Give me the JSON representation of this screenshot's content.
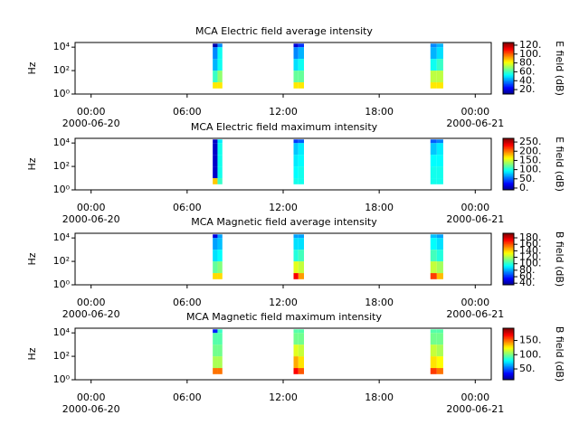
{
  "chart_data": [
    {
      "type": "heatmap",
      "title": "MCA  Electric field average intensity",
      "ylabel": "Hz",
      "colorbar_label": "E field (dB)",
      "colormap": "jet",
      "ylog": true,
      "xlim": [
        -1,
        25
      ],
      "xticks": [
        {
          "value": 0,
          "label": "00:00"
        },
        {
          "value": 6,
          "label": "06:00"
        },
        {
          "value": 12,
          "label": "12:00"
        },
        {
          "value": 18,
          "label": "18:00"
        },
        {
          "value": 24,
          "label": "00:00"
        }
      ],
      "xtick_dates": [
        {
          "value": 0,
          "label": "2000-06-20"
        },
        {
          "value": 24,
          "label": "2000-06-21"
        }
      ],
      "ylim": [
        1,
        25000
      ],
      "yticks": [
        {
          "value": 1,
          "label": "10⁰"
        },
        {
          "value": 100,
          "label": "10²"
        },
        {
          "value": 10000,
          "label": "10⁴"
        }
      ],
      "clim": [
        10,
        126
      ],
      "cticks": [
        {
          "value": 20,
          "label": "20."
        },
        {
          "value": 40,
          "label": "40."
        },
        {
          "value": 60,
          "label": "60."
        },
        {
          "value": 80,
          "label": "80."
        },
        {
          "value": 100,
          "label": "100."
        },
        {
          "value": 120,
          "label": "120."
        }
      ],
      "freq_edges": [
        3,
        10,
        100,
        1000,
        10000,
        20000
      ],
      "blocks": [
        {
          "x": [
            7.6,
            7.9,
            8.2
          ],
          "values": [
            [
              85,
              85
            ],
            [
              60,
              70
            ],
            [
              45,
              55
            ],
            [
              40,
              55
            ],
            [
              15,
              40
            ]
          ]
        },
        {
          "x": [
            12.65,
            12.95,
            13.3
          ],
          "values": [
            [
              85,
              85
            ],
            [
              65,
              65
            ],
            [
              50,
              55
            ],
            [
              40,
              45
            ],
            [
              20,
              30
            ]
          ]
        },
        {
          "x": [
            21.2,
            21.6,
            22.0
          ],
          "values": [
            [
              85,
              85
            ],
            [
              75,
              75
            ],
            [
              55,
              60
            ],
            [
              45,
              50
            ],
            [
              40,
              45
            ]
          ]
        }
      ]
    },
    {
      "type": "heatmap",
      "title": "MCA  Electric field maximum intensity",
      "ylabel": "Hz",
      "colorbar_label": "E field (dB)",
      "colormap": "jet",
      "ylog": true,
      "xlim": [
        -1,
        25
      ],
      "xticks": [
        {
          "value": 0,
          "label": "00:00"
        },
        {
          "value": 6,
          "label": "06:00"
        },
        {
          "value": 12,
          "label": "12:00"
        },
        {
          "value": 18,
          "label": "18:00"
        },
        {
          "value": 24,
          "label": "00:00"
        }
      ],
      "xtick_dates": [
        {
          "value": 0,
          "label": "2000-06-20"
        },
        {
          "value": 24,
          "label": "2000-06-21"
        }
      ],
      "ylim": [
        1,
        25000
      ],
      "yticks": [
        {
          "value": 1,
          "label": "10⁰"
        },
        {
          "value": 100,
          "label": "10²"
        },
        {
          "value": 10000,
          "label": "10⁴"
        }
      ],
      "clim": [
        -10,
        270
      ],
      "cticks": [
        {
          "value": 0,
          "label": "0."
        },
        {
          "value": 50,
          "label": "50."
        },
        {
          "value": 100,
          "label": "100."
        },
        {
          "value": 150,
          "label": "150."
        },
        {
          "value": 200,
          "label": "200."
        },
        {
          "value": 250,
          "label": "250."
        }
      ],
      "freq_edges": [
        3,
        10,
        100,
        1000,
        10000,
        20000
      ],
      "blocks": [
        {
          "x": [
            7.6,
            7.9,
            8.2
          ],
          "values": [
            [
              180,
              110
            ],
            [
              10,
              100
            ],
            [
              10,
              100
            ],
            [
              10,
              100
            ],
            [
              10,
              90
            ]
          ]
        },
        {
          "x": [
            12.65,
            12.95,
            13.3
          ],
          "values": [
            [
              100,
              100
            ],
            [
              95,
              100
            ],
            [
              90,
              95
            ],
            [
              80,
              90
            ],
            [
              40,
              50
            ]
          ]
        },
        {
          "x": [
            21.2,
            21.6,
            22.0
          ],
          "values": [
            [
              100,
              100
            ],
            [
              100,
              100
            ],
            [
              95,
              95
            ],
            [
              80,
              90
            ],
            [
              50,
              60
            ]
          ]
        }
      ]
    },
    {
      "type": "heatmap",
      "title": "MCA  Magnetic field average intensity",
      "ylabel": "Hz",
      "colorbar_label": "B field (dB)",
      "colormap": "jet",
      "ylog": true,
      "xlim": [
        -1,
        25
      ],
      "xticks": [
        {
          "value": 0,
          "label": "00:00"
        },
        {
          "value": 6,
          "label": "06:00"
        },
        {
          "value": 12,
          "label": "12:00"
        },
        {
          "value": 18,
          "label": "18:00"
        },
        {
          "value": 24,
          "label": "00:00"
        }
      ],
      "xtick_dates": [
        {
          "value": 0,
          "label": "2000-06-20"
        },
        {
          "value": 24,
          "label": "2000-06-21"
        }
      ],
      "ylim": [
        1,
        25000
      ],
      "yticks": [
        {
          "value": 1,
          "label": "10⁰"
        },
        {
          "value": 100,
          "label": "10²"
        },
        {
          "value": 10000,
          "label": "10⁴"
        }
      ],
      "clim": [
        35,
        194
      ],
      "cticks": [
        {
          "value": 40,
          "label": "40."
        },
        {
          "value": 60,
          "label": "60."
        },
        {
          "value": 80,
          "label": "80."
        },
        {
          "value": 100,
          "label": "100."
        },
        {
          "value": 120,
          "label": "120."
        },
        {
          "value": 140,
          "label": "140."
        },
        {
          "value": 160,
          "label": "160."
        },
        {
          "value": 180,
          "label": "180."
        }
      ],
      "freq_edges": [
        3,
        10,
        100,
        1000,
        10000,
        20000
      ],
      "blocks": [
        {
          "x": [
            7.6,
            7.9,
            8.2
          ],
          "values": [
            [
              140,
              140
            ],
            [
              110,
              115
            ],
            [
              90,
              95
            ],
            [
              80,
              85
            ],
            [
              50,
              80
            ]
          ]
        },
        {
          "x": [
            12.65,
            12.95,
            13.3
          ],
          "values": [
            [
              175,
              150
            ],
            [
              130,
              125
            ],
            [
              100,
              105
            ],
            [
              90,
              90
            ],
            [
              80,
              80
            ]
          ]
        },
        {
          "x": [
            21.2,
            21.6,
            22.0
          ],
          "values": [
            [
              165,
              145
            ],
            [
              125,
              120
            ],
            [
              105,
              100
            ],
            [
              95,
              90
            ],
            [
              85,
              80
            ]
          ]
        }
      ]
    },
    {
      "type": "heatmap",
      "title": "MCA  Magnetic field maximum intensity",
      "ylabel": "Hz",
      "colorbar_label": "B field (dB)",
      "colormap": "jet",
      "ylog": true,
      "xlim": [
        -1,
        25
      ],
      "xticks": [
        {
          "value": 0,
          "label": "00:00"
        },
        {
          "value": 6,
          "label": "06:00"
        },
        {
          "value": 12,
          "label": "12:00"
        },
        {
          "value": 18,
          "label": "18:00"
        },
        {
          "value": 24,
          "label": "00:00"
        }
      ],
      "xtick_dates": [
        {
          "value": 0,
          "label": "2000-06-20"
        },
        {
          "value": 24,
          "label": "2000-06-21"
        }
      ],
      "ylim": [
        1,
        25000
      ],
      "yticks": [
        {
          "value": 1,
          "label": "10⁰"
        },
        {
          "value": 100,
          "label": "10²"
        },
        {
          "value": 10000,
          "label": "10⁴"
        }
      ],
      "clim": [
        12,
        193
      ],
      "cticks": [
        {
          "value": 50,
          "label": "50."
        },
        {
          "value": 100,
          "label": "100."
        },
        {
          "value": 150,
          "label": "150."
        }
      ],
      "freq_edges": [
        3,
        10,
        100,
        1000,
        10000,
        20000
      ],
      "blocks": [
        {
          "x": [
            7.6,
            7.9,
            8.2
          ],
          "values": [
            [
              150,
              150
            ],
            [
              110,
              110
            ],
            [
              100,
              100
            ],
            [
              95,
              95
            ],
            [
              40,
              90
            ]
          ]
        },
        {
          "x": [
            12.65,
            12.95,
            13.3
          ],
          "values": [
            [
              170,
              155
            ],
            [
              140,
              130
            ],
            [
              120,
              115
            ],
            [
              100,
              100
            ],
            [
              95,
              95
            ]
          ]
        },
        {
          "x": [
            21.2,
            21.6,
            22.0
          ],
          "values": [
            [
              160,
              150
            ],
            [
              130,
              125
            ],
            [
              115,
              110
            ],
            [
              100,
              100
            ],
            [
              95,
              95
            ]
          ]
        }
      ]
    }
  ]
}
